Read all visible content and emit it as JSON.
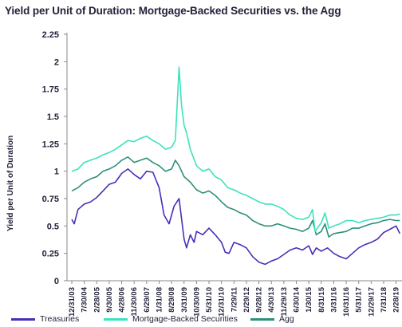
{
  "title": "Yield per Unit of Duration: Mortgage-Backed Securities vs. the Agg",
  "chart_data": {
    "type": "line",
    "title": "Yield per Unit of Duration: Mortgage-Backed Securities vs. the Agg",
    "xlabel": "",
    "ylabel": "Yield per Unit of Duration",
    "ylim": [
      0,
      2.25
    ],
    "yticks": [
      "0",
      "0.25",
      "0.5",
      "0.75",
      "1",
      "1.25",
      "1.5",
      "1.75",
      "2",
      "2.25"
    ],
    "ytick_values": [
      0,
      0.25,
      0.5,
      0.75,
      1,
      1.25,
      1.5,
      1.75,
      2,
      2.25
    ],
    "xticks": [
      "12/31/03",
      "7/30/04",
      "2/28/05",
      "9/30/05",
      "4/28/06",
      "11/30/06",
      "6/29/07",
      "1/31/08",
      "8/29/08",
      "3/31/09",
      "10/30/09",
      "5/31/10",
      "12/31/10",
      "7/29/11",
      "2/29/12",
      "9/28/12",
      "4/30/13",
      "11/29/13",
      "6/30/14",
      "1/30/15",
      "8/31/15",
      "3/31/16",
      "10/31/16",
      "5/31/17",
      "12/29/17",
      "7/31/18",
      "2/28/19"
    ],
    "grid": false,
    "legend_position": "bottom",
    "series": [
      {
        "name": "Treasuries",
        "color": "#4b2db8",
        "points": [
          [
            0,
            0.56
          ],
          [
            0.2,
            0.52
          ],
          [
            0.5,
            0.65
          ],
          [
            1,
            0.7
          ],
          [
            1.5,
            0.72
          ],
          [
            2,
            0.76
          ],
          [
            2.5,
            0.82
          ],
          [
            3,
            0.88
          ],
          [
            3.5,
            0.9
          ],
          [
            4,
            0.98
          ],
          [
            4.5,
            1.02
          ],
          [
            5,
            0.97
          ],
          [
            5.5,
            0.93
          ],
          [
            6,
            1.0
          ],
          [
            6.5,
            0.99
          ],
          [
            7,
            0.85
          ],
          [
            7.4,
            0.6
          ],
          [
            7.8,
            0.52
          ],
          [
            8.2,
            0.68
          ],
          [
            8.6,
            0.75
          ],
          [
            9.0,
            0.38
          ],
          [
            9.2,
            0.3
          ],
          [
            9.5,
            0.42
          ],
          [
            9.8,
            0.35
          ],
          [
            10,
            0.45
          ],
          [
            10.5,
            0.42
          ],
          [
            11,
            0.48
          ],
          [
            11.5,
            0.42
          ],
          [
            12,
            0.35
          ],
          [
            12.3,
            0.26
          ],
          [
            12.6,
            0.25
          ],
          [
            13,
            0.35
          ],
          [
            13.5,
            0.33
          ],
          [
            14,
            0.3
          ],
          [
            14.5,
            0.22
          ],
          [
            15,
            0.17
          ],
          [
            15.5,
            0.15
          ],
          [
            16,
            0.18
          ],
          [
            16.5,
            0.2
          ],
          [
            17,
            0.24
          ],
          [
            17.5,
            0.28
          ],
          [
            18,
            0.3
          ],
          [
            18.5,
            0.28
          ],
          [
            19,
            0.32
          ],
          [
            19.3,
            0.24
          ],
          [
            19.6,
            0.3
          ],
          [
            20,
            0.27
          ],
          [
            20.5,
            0.3
          ],
          [
            21,
            0.25
          ],
          [
            21.5,
            0.22
          ],
          [
            22,
            0.2
          ],
          [
            22.5,
            0.25
          ],
          [
            23,
            0.3
          ],
          [
            23.5,
            0.33
          ],
          [
            24,
            0.35
          ],
          [
            24.5,
            0.38
          ],
          [
            25,
            0.44
          ],
          [
            25.5,
            0.47
          ],
          [
            26,
            0.5
          ],
          [
            26.3,
            0.43
          ]
        ]
      },
      {
        "name": "Mortgage-Backed Securities",
        "color": "#3be3bd",
        "points": [
          [
            0,
            1.0
          ],
          [
            0.5,
            1.02
          ],
          [
            1,
            1.08
          ],
          [
            1.5,
            1.1
          ],
          [
            2,
            1.12
          ],
          [
            2.5,
            1.15
          ],
          [
            3,
            1.17
          ],
          [
            3.5,
            1.2
          ],
          [
            4,
            1.24
          ],
          [
            4.5,
            1.28
          ],
          [
            5,
            1.27
          ],
          [
            5.5,
            1.3
          ],
          [
            6,
            1.32
          ],
          [
            6.5,
            1.28
          ],
          [
            7,
            1.25
          ],
          [
            7.5,
            1.2
          ],
          [
            8,
            1.22
          ],
          [
            8.3,
            1.28
          ],
          [
            8.6,
            1.95
          ],
          [
            8.8,
            1.6
          ],
          [
            9.0,
            1.42
          ],
          [
            9.2,
            1.35
          ],
          [
            9.5,
            1.2
          ],
          [
            10,
            1.05
          ],
          [
            10.5,
            1.0
          ],
          [
            11,
            1.02
          ],
          [
            11.5,
            0.95
          ],
          [
            12,
            0.92
          ],
          [
            12.5,
            0.85
          ],
          [
            13,
            0.83
          ],
          [
            13.5,
            0.8
          ],
          [
            14,
            0.78
          ],
          [
            14.5,
            0.75
          ],
          [
            15,
            0.72
          ],
          [
            15.5,
            0.7
          ],
          [
            16,
            0.7
          ],
          [
            16.5,
            0.68
          ],
          [
            17,
            0.65
          ],
          [
            17.5,
            0.6
          ],
          [
            18,
            0.57
          ],
          [
            18.5,
            0.56
          ],
          [
            19,
            0.58
          ],
          [
            19.3,
            0.65
          ],
          [
            19.5,
            0.45
          ],
          [
            20,
            0.53
          ],
          [
            20.3,
            0.62
          ],
          [
            20.6,
            0.48
          ],
          [
            21,
            0.5
          ],
          [
            21.5,
            0.52
          ],
          [
            22,
            0.55
          ],
          [
            22.5,
            0.55
          ],
          [
            23,
            0.53
          ],
          [
            23.5,
            0.55
          ],
          [
            24,
            0.56
          ],
          [
            24.5,
            0.57
          ],
          [
            25,
            0.58
          ],
          [
            25.5,
            0.6
          ],
          [
            26,
            0.6
          ],
          [
            26.3,
            0.61
          ]
        ]
      },
      {
        "name": "Agg",
        "color": "#2e8f7a",
        "points": [
          [
            0,
            0.82
          ],
          [
            0.5,
            0.85
          ],
          [
            1,
            0.9
          ],
          [
            1.5,
            0.93
          ],
          [
            2,
            0.95
          ],
          [
            2.5,
            1.0
          ],
          [
            3,
            1.02
          ],
          [
            3.5,
            1.05
          ],
          [
            4,
            1.1
          ],
          [
            4.5,
            1.13
          ],
          [
            5,
            1.08
          ],
          [
            5.5,
            1.1
          ],
          [
            6,
            1.12
          ],
          [
            6.5,
            1.08
          ],
          [
            7,
            1.05
          ],
          [
            7.5,
            1.0
          ],
          [
            8,
            1.02
          ],
          [
            8.3,
            1.1
          ],
          [
            8.6,
            1.05
          ],
          [
            9.0,
            0.95
          ],
          [
            9.5,
            0.9
          ],
          [
            10,
            0.83
          ],
          [
            10.5,
            0.8
          ],
          [
            11,
            0.82
          ],
          [
            11.5,
            0.78
          ],
          [
            12,
            0.72
          ],
          [
            12.5,
            0.67
          ],
          [
            13,
            0.65
          ],
          [
            13.5,
            0.62
          ],
          [
            14,
            0.6
          ],
          [
            14.5,
            0.55
          ],
          [
            15,
            0.52
          ],
          [
            15.5,
            0.5
          ],
          [
            16,
            0.5
          ],
          [
            16.5,
            0.52
          ],
          [
            17,
            0.5
          ],
          [
            17.5,
            0.48
          ],
          [
            18,
            0.47
          ],
          [
            18.5,
            0.45
          ],
          [
            19,
            0.48
          ],
          [
            19.3,
            0.55
          ],
          [
            19.6,
            0.42
          ],
          [
            20,
            0.45
          ],
          [
            20.3,
            0.52
          ],
          [
            20.6,
            0.4
          ],
          [
            21,
            0.43
          ],
          [
            21.5,
            0.44
          ],
          [
            22,
            0.45
          ],
          [
            22.5,
            0.48
          ],
          [
            23,
            0.48
          ],
          [
            23.5,
            0.5
          ],
          [
            24,
            0.52
          ],
          [
            24.5,
            0.53
          ],
          [
            25,
            0.55
          ],
          [
            25.5,
            0.56
          ],
          [
            26,
            0.55
          ],
          [
            26.3,
            0.55
          ]
        ]
      }
    ]
  }
}
